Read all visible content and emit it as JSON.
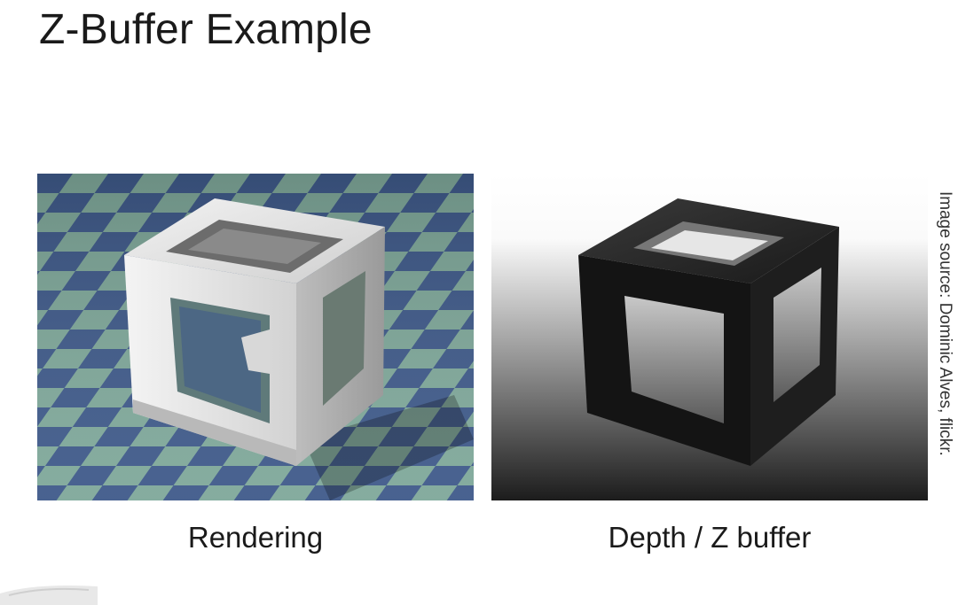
{
  "slide": {
    "title": "Z-Buffer Example",
    "credit": "Image source: Dominic Alves, flickr."
  },
  "figures": [
    {
      "id": "rendering",
      "caption": "Rendering",
      "depicts": "shaded cube frame"
    },
    {
      "id": "depth",
      "caption": "Depth / Z buffer",
      "depicts": "cube frame depth map"
    }
  ],
  "colors": {
    "background": "#ffffff",
    "text": "#1a1a1a",
    "floor_blue": "#3f5a8a",
    "floor_green": "#7fa89a",
    "cube_light": "#d9d9d9",
    "depth_dark": "#111111"
  }
}
